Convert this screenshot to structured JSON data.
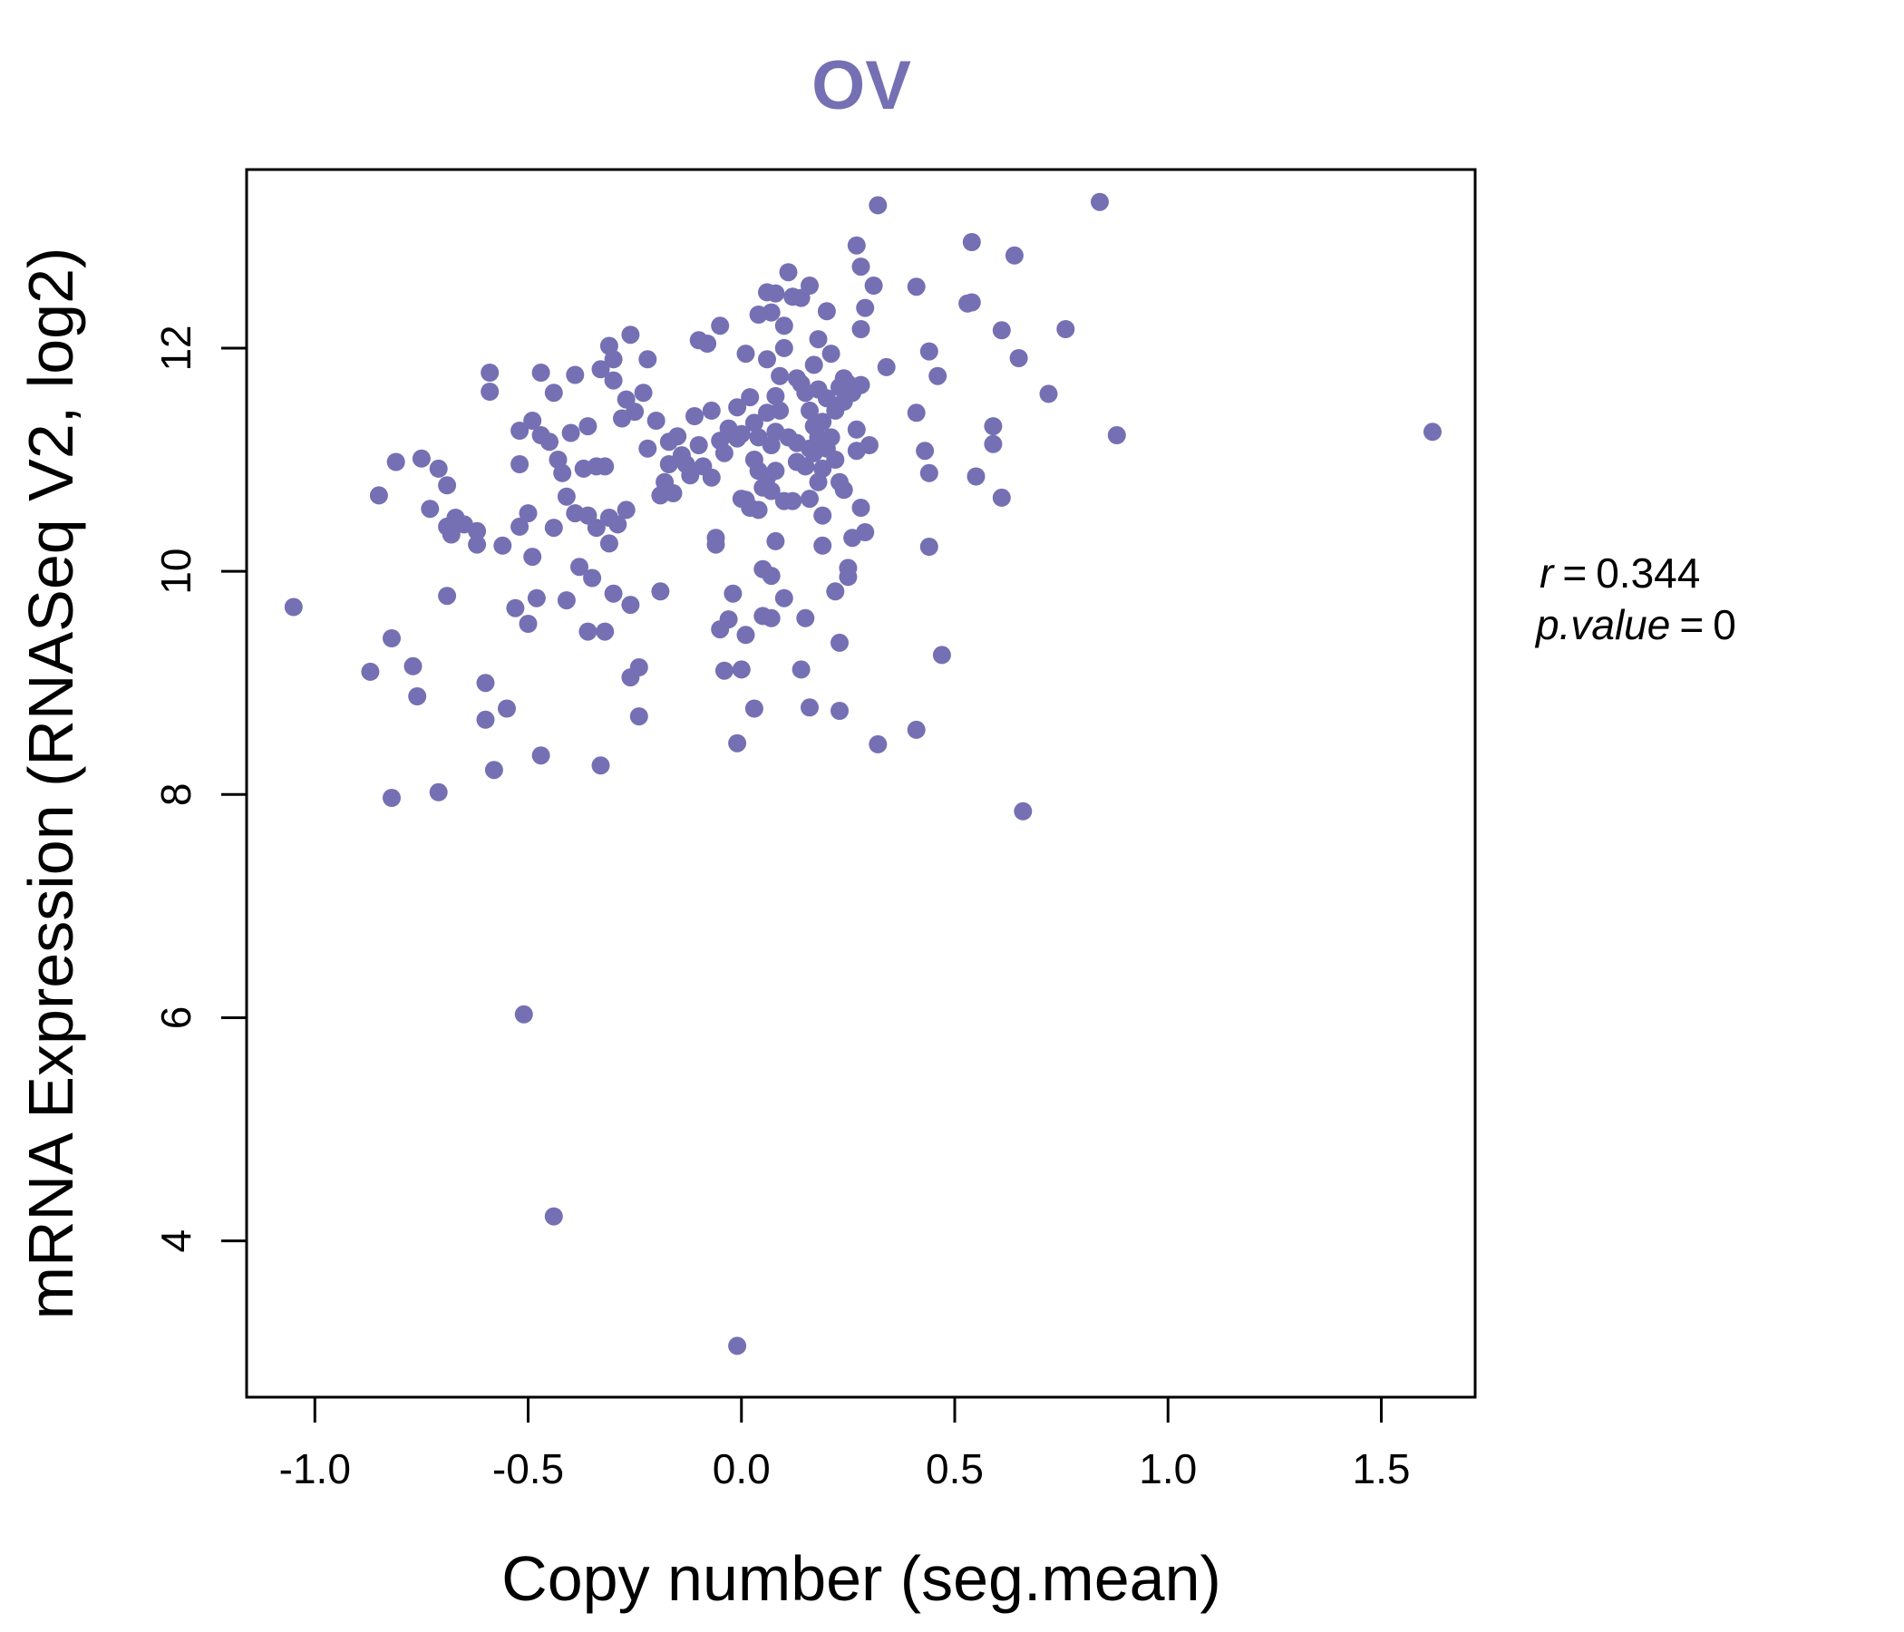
{
  "colors": {
    "points": "#7570b3",
    "axis": "#000000",
    "background": "#ffffff"
  },
  "chart_data": {
    "type": "scatter",
    "title": "OV",
    "xlabel": "Copy number (seg.mean)",
    "ylabel": "mRNA Expression (RNASeq V2, log2)",
    "xlim": [
      -1.16,
      1.72
    ],
    "ylim": [
      2.6,
      13.6
    ],
    "x_ticks": [
      -1.0,
      -0.5,
      0.0,
      0.5,
      1.0,
      1.5
    ],
    "x_tick_labels": [
      "-1.0",
      "-0.5",
      "0.0",
      "0.5",
      "1.0",
      "1.5"
    ],
    "y_ticks": [
      4,
      6,
      8,
      10,
      12
    ],
    "y_tick_labels": [
      "4",
      "6",
      "8",
      "10",
      "12"
    ],
    "annotation": {
      "r_label": "r",
      "r_value": "0.344",
      "p_label": "p.value",
      "p_value": "0"
    },
    "points": [
      [
        -1.05,
        9.68
      ],
      [
        -0.87,
        9.1
      ],
      [
        -0.85,
        10.68
      ],
      [
        -0.82,
        9.4
      ],
      [
        -0.81,
        10.98
      ],
      [
        -0.82,
        7.97
      ],
      [
        -0.77,
        9.15
      ],
      [
        -0.76,
        8.88
      ],
      [
        -0.75,
        11.01
      ],
      [
        -0.73,
        10.56
      ],
      [
        -0.71,
        10.92
      ],
      [
        -0.71,
        8.02
      ],
      [
        -0.69,
        10.77
      ],
      [
        -0.69,
        9.78
      ],
      [
        -0.69,
        10.4
      ],
      [
        -0.68,
        10.33
      ],
      [
        -0.67,
        10.48
      ],
      [
        -0.65,
        10.42
      ],
      [
        -0.62,
        10.36
      ],
      [
        -0.62,
        10.24
      ],
      [
        -0.6,
        9.0
      ],
      [
        -0.6,
        8.67
      ],
      [
        -0.59,
        11.78
      ],
      [
        -0.59,
        11.61
      ],
      [
        -0.58,
        8.22
      ],
      [
        -0.56,
        10.23
      ],
      [
        -0.55,
        8.77
      ],
      [
        -0.53,
        9.67
      ],
      [
        -0.52,
        11.26
      ],
      [
        -0.52,
        10.96
      ],
      [
        -0.52,
        10.4
      ],
      [
        -0.51,
        6.03
      ],
      [
        -0.5,
        10.52
      ],
      [
        -0.5,
        9.53
      ],
      [
        -0.49,
        11.35
      ],
      [
        -0.49,
        10.13
      ],
      [
        -0.48,
        9.76
      ],
      [
        -0.47,
        11.22
      ],
      [
        -0.47,
        11.78
      ],
      [
        -0.47,
        8.35
      ],
      [
        -0.45,
        11.16
      ],
      [
        -0.44,
        4.22
      ],
      [
        -0.44,
        11.6
      ],
      [
        -0.44,
        10.39
      ],
      [
        -0.43,
        11.0
      ],
      [
        -0.42,
        10.88
      ],
      [
        -0.41,
        10.67
      ],
      [
        -0.41,
        9.74
      ],
      [
        -0.4,
        11.24
      ],
      [
        -0.39,
        11.76
      ],
      [
        -0.39,
        10.52
      ],
      [
        -0.38,
        10.04
      ],
      [
        -0.37,
        10.92
      ],
      [
        -0.36,
        11.3
      ],
      [
        -0.36,
        10.5
      ],
      [
        -0.36,
        9.46
      ],
      [
        -0.35,
        9.94
      ],
      [
        -0.34,
        10.94
      ],
      [
        -0.34,
        10.39
      ],
      [
        -0.33,
        11.81
      ],
      [
        -0.33,
        8.26
      ],
      [
        -0.32,
        10.94
      ],
      [
        -0.32,
        9.46
      ],
      [
        -0.31,
        12.02
      ],
      [
        -0.31,
        10.48
      ],
      [
        -0.31,
        10.25
      ],
      [
        -0.3,
        11.9
      ],
      [
        -0.3,
        11.71
      ],
      [
        -0.3,
        9.8
      ],
      [
        -0.29,
        10.42
      ],
      [
        -0.28,
        11.37
      ],
      [
        -0.27,
        11.54
      ],
      [
        -0.27,
        10.55
      ],
      [
        -0.26,
        12.12
      ],
      [
        -0.26,
        9.7
      ],
      [
        -0.26,
        9.05
      ],
      [
        -0.25,
        11.43
      ],
      [
        -0.24,
        9.14
      ],
      [
        -0.24,
        8.7
      ],
      [
        -0.23,
        11.6
      ],
      [
        -0.22,
        11.9
      ],
      [
        -0.22,
        11.1
      ],
      [
        -0.2,
        11.35
      ],
      [
        -0.19,
        10.68
      ],
      [
        -0.19,
        9.82
      ],
      [
        -0.18,
        10.8
      ],
      [
        -0.17,
        11.16
      ],
      [
        -0.17,
        10.96
      ],
      [
        -0.16,
        10.7
      ],
      [
        -0.15,
        11.21
      ],
      [
        -0.14,
        11.04
      ],
      [
        -0.13,
        10.96
      ],
      [
        -0.12,
        10.86
      ],
      [
        -0.11,
        11.39
      ],
      [
        -0.1,
        12.07
      ],
      [
        -0.1,
        11.13
      ],
      [
        -0.09,
        10.94
      ],
      [
        -0.08,
        12.04
      ],
      [
        -0.07,
        11.44
      ],
      [
        -0.07,
        10.84
      ],
      [
        -0.06,
        10.3
      ],
      [
        -0.06,
        10.24
      ],
      [
        -0.05,
        12.2
      ],
      [
        -0.05,
        11.17
      ],
      [
        -0.05,
        9.48
      ],
      [
        -0.04,
        11.06
      ],
      [
        -0.04,
        9.11
      ],
      [
        -0.03,
        11.28
      ],
      [
        -0.03,
        9.57
      ],
      [
        -0.02,
        9.8
      ],
      [
        -0.01,
        11.47
      ],
      [
        -0.01,
        11.19
      ],
      [
        -0.01,
        8.46
      ],
      [
        -0.01,
        3.06
      ],
      [
        0.0,
        11.23
      ],
      [
        0.0,
        9.12
      ],
      [
        0.0,
        10.65
      ],
      [
        0.01,
        11.95
      ],
      [
        0.01,
        10.64
      ],
      [
        0.01,
        9.43
      ],
      [
        0.02,
        11.56
      ],
      [
        0.02,
        10.57
      ],
      [
        0.03,
        11.33
      ],
      [
        0.03,
        11.0
      ],
      [
        0.03,
        8.77
      ],
      [
        0.04,
        12.3
      ],
      [
        0.04,
        11.2
      ],
      [
        0.04,
        10.9
      ],
      [
        0.04,
        10.55
      ],
      [
        0.05,
        10.75
      ],
      [
        0.05,
        10.02
      ],
      [
        0.05,
        9.6
      ],
      [
        0.06,
        12.5
      ],
      [
        0.06,
        11.9
      ],
      [
        0.06,
        11.42
      ],
      [
        0.06,
        10.84
      ],
      [
        0.07,
        12.32
      ],
      [
        0.07,
        11.13
      ],
      [
        0.07,
        10.72
      ],
      [
        0.07,
        9.96
      ],
      [
        0.07,
        9.58
      ],
      [
        0.08,
        12.49
      ],
      [
        0.08,
        11.57
      ],
      [
        0.08,
        11.25
      ],
      [
        0.08,
        10.9
      ],
      [
        0.08,
        10.27
      ],
      [
        0.09,
        11.75
      ],
      [
        0.09,
        11.44
      ],
      [
        0.1,
        12.2
      ],
      [
        0.1,
        12.0
      ],
      [
        0.1,
        10.63
      ],
      [
        0.1,
        9.76
      ],
      [
        0.11,
        12.68
      ],
      [
        0.11,
        11.2
      ],
      [
        0.12,
        12.46
      ],
      [
        0.12,
        10.63
      ],
      [
        0.13,
        11.73
      ],
      [
        0.13,
        11.15
      ],
      [
        0.13,
        10.98
      ],
      [
        0.14,
        12.45
      ],
      [
        0.14,
        11.68
      ],
      [
        0.14,
        9.12
      ],
      [
        0.15,
        11.6
      ],
      [
        0.15,
        10.94
      ],
      [
        0.15,
        9.58
      ],
      [
        0.16,
        12.56
      ],
      [
        0.16,
        11.44
      ],
      [
        0.16,
        11.1
      ],
      [
        0.16,
        10.65
      ],
      [
        0.16,
        8.78
      ],
      [
        0.17,
        11.85
      ],
      [
        0.17,
        11.3
      ],
      [
        0.17,
        11.06
      ],
      [
        0.18,
        12.08
      ],
      [
        0.18,
        11.63
      ],
      [
        0.18,
        11.2
      ],
      [
        0.18,
        10.8
      ],
      [
        0.19,
        11.34
      ],
      [
        0.19,
        10.92
      ],
      [
        0.19,
        10.5
      ],
      [
        0.19,
        10.23
      ],
      [
        0.2,
        12.33
      ],
      [
        0.2,
        11.55
      ],
      [
        0.2,
        11.1
      ],
      [
        0.21,
        11.95
      ],
      [
        0.21,
        11.2
      ],
      [
        0.22,
        11.44
      ],
      [
        0.22,
        11.0
      ],
      [
        0.22,
        9.82
      ],
      [
        0.23,
        11.65
      ],
      [
        0.23,
        10.8
      ],
      [
        0.23,
        9.36
      ],
      [
        0.23,
        8.75
      ],
      [
        0.24,
        11.73
      ],
      [
        0.24,
        11.52
      ],
      [
        0.24,
        10.73
      ],
      [
        0.25,
        11.68
      ],
      [
        0.25,
        10.03
      ],
      [
        0.25,
        9.95
      ],
      [
        0.26,
        11.6
      ],
      [
        0.26,
        10.3
      ],
      [
        0.27,
        12.92
      ],
      [
        0.27,
        11.27
      ],
      [
        0.27,
        11.08
      ],
      [
        0.28,
        12.73
      ],
      [
        0.28,
        12.17
      ],
      [
        0.28,
        11.67
      ],
      [
        0.28,
        10.57
      ],
      [
        0.29,
        12.36
      ],
      [
        0.29,
        10.35
      ],
      [
        0.3,
        11.13
      ],
      [
        0.31,
        12.56
      ],
      [
        0.32,
        13.28
      ],
      [
        0.32,
        8.45
      ],
      [
        0.34,
        11.83
      ],
      [
        0.41,
        12.55
      ],
      [
        0.41,
        11.42
      ],
      [
        0.41,
        8.58
      ],
      [
        0.43,
        11.08
      ],
      [
        0.44,
        10.88
      ],
      [
        0.44,
        11.97
      ],
      [
        0.44,
        10.22
      ],
      [
        0.46,
        11.75
      ],
      [
        0.47,
        9.25
      ],
      [
        0.53,
        12.4
      ],
      [
        0.54,
        12.41
      ],
      [
        0.54,
        12.95
      ],
      [
        0.55,
        10.85
      ],
      [
        0.59,
        11.3
      ],
      [
        0.59,
        11.14
      ],
      [
        0.61,
        12.16
      ],
      [
        0.61,
        10.66
      ],
      [
        0.64,
        12.83
      ],
      [
        0.65,
        11.91
      ],
      [
        0.66,
        7.85
      ],
      [
        0.72,
        11.59
      ],
      [
        0.76,
        12.17
      ],
      [
        0.84,
        13.31
      ],
      [
        0.88,
        11.22
      ],
      [
        1.62,
        11.25
      ]
    ]
  }
}
